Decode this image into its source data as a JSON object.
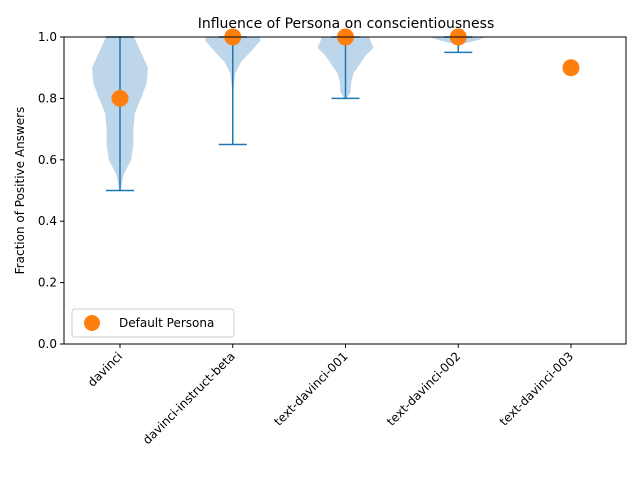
{
  "chart_data": {
    "type": "violin",
    "title": "Influence of Persona on conscientiousness",
    "xlabel": "",
    "ylabel": "Fraction of Positive Answers",
    "ylim": [
      0,
      1.0
    ],
    "yticks": [
      "0.0",
      "0.2",
      "0.4",
      "0.6",
      "0.8",
      "1.0"
    ],
    "categories": [
      "davinci",
      "davinci-instruct-beta",
      "text-davinci-001",
      "text-davinci-002",
      "text-davinci-003"
    ],
    "violins": [
      {
        "category": "davinci",
        "min": 0.5,
        "max": 1.0,
        "profile": [
          [
            0.5,
            0.02
          ],
          [
            0.55,
            0.12
          ],
          [
            0.6,
            0.4
          ],
          [
            0.65,
            0.48
          ],
          [
            0.7,
            0.48
          ],
          [
            0.75,
            0.52
          ],
          [
            0.8,
            0.75
          ],
          [
            0.85,
            0.95
          ],
          [
            0.9,
            1.0
          ],
          [
            0.95,
            0.75
          ],
          [
            1.0,
            0.5
          ]
        ]
      },
      {
        "category": "davinci-instruct-beta",
        "min": 0.65,
        "max": 1.0,
        "profile": [
          [
            0.65,
            0.0
          ],
          [
            0.8,
            0.0
          ],
          [
            0.88,
            0.08
          ],
          [
            0.92,
            0.3
          ],
          [
            0.96,
            0.72
          ],
          [
            0.99,
            1.0
          ],
          [
            1.0,
            0.95
          ]
        ]
      },
      {
        "category": "text-davinci-001",
        "min": 0.8,
        "max": 1.0,
        "profile": [
          [
            0.8,
            0.05
          ],
          [
            0.82,
            0.18
          ],
          [
            0.85,
            0.2
          ],
          [
            0.88,
            0.28
          ],
          [
            0.91,
            0.5
          ],
          [
            0.94,
            0.72
          ],
          [
            0.965,
            1.0
          ],
          [
            0.985,
            0.9
          ],
          [
            1.0,
            0.85
          ]
        ]
      },
      {
        "category": "text-davinci-002",
        "min": 0.95,
        "max": 1.0,
        "profile": [
          [
            0.95,
            0.0
          ],
          [
            0.975,
            0.05
          ],
          [
            0.99,
            0.7
          ],
          [
            1.0,
            1.0
          ]
        ]
      }
    ],
    "default_persona": {
      "label": "Default Persona",
      "values": [
        0.8,
        1.0,
        1.0,
        1.0,
        0.9
      ]
    },
    "colors": {
      "violin_fill": "#b9d4e8",
      "bar": "#1f77b4",
      "marker": "#ff7f0e"
    },
    "legend_position": "lower-left"
  }
}
